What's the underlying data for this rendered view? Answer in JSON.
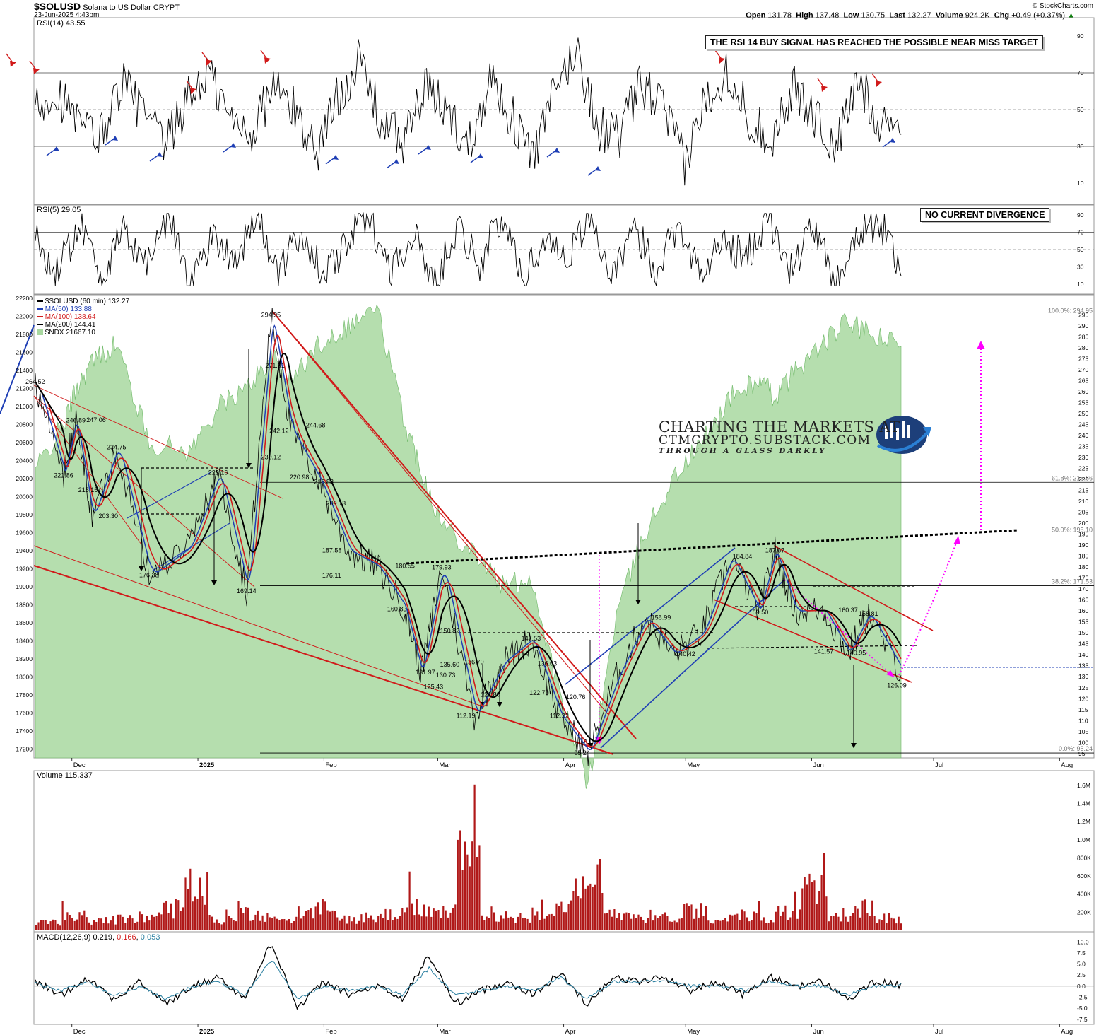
{
  "header": {
    "symbol": "$SOLUSD",
    "title": "Solana to US Dollar",
    "exchange": "CRYPT",
    "date": "23-Jun-2025 4:43pm",
    "watermark": "© StockCharts.com",
    "open_label": "Open",
    "open": "131.78",
    "high_label": "High",
    "high": "137.48",
    "low_label": "Low",
    "low": "130.75",
    "last_label": "Last",
    "last": "132.27",
    "volume_label": "Volume",
    "volume": "924.2K",
    "chg_label": "Chg",
    "chg": "+0.49 (+0.37%)",
    "chg_marker": "▲"
  },
  "branding": {
    "line1": "CHARTING THE MARKETS AT",
    "line2": "CTMCRYPTO.SUBSTACK.COM",
    "line3": "THROUGH A GLASS DARKLY"
  },
  "colors": {
    "ma50": "#1f3fb5",
    "ma100": "#d11a1a",
    "ma200": "#000000",
    "ndx_fill": "#a8d8a0",
    "annotation": "#ff00ff",
    "volume": "#b01818",
    "macd_signal": "#2a7fa0"
  },
  "chart_data": [
    {
      "type": "line",
      "panel": "RSI(14)",
      "legend": "RSI(14) 43.55",
      "ylim": [
        0,
        100
      ],
      "yticks": [
        10,
        30,
        50,
        70,
        90
      ],
      "reference_lines": [
        30,
        50,
        70
      ],
      "annotation": "THE RSI 14 BUY SIGNAL HAS REACHED THE POSSIBLE NEAR MISS TARGET",
      "series": [
        {
          "values": [
            52,
            60,
            41,
            35,
            66,
            48,
            29,
            55,
            71,
            44,
            38,
            63,
            49,
            27,
            58,
            77,
            42,
            33,
            61,
            50,
            30,
            68,
            46,
            24,
            59,
            83,
            40,
            36,
            64,
            51,
            20,
            57,
            72,
            45,
            34,
            62,
            47,
            28,
            66,
            44,
            43.55
          ]
        }
      ]
    },
    {
      "type": "line",
      "panel": "RSI(5)",
      "legend": "RSI(5) 29.05",
      "ylim": [
        0,
        100
      ],
      "yticks": [
        10,
        30,
        50,
        70,
        90
      ],
      "reference_lines": [
        30,
        50,
        70
      ],
      "annotation": "NO CURRENT DIVERGENCE",
      "series": [
        {
          "values": [
            60,
            22,
            85,
            18,
            70,
            35,
            90,
            12,
            66,
            40,
            88,
            20,
            75,
            15,
            58,
            92,
            25,
            69,
            10,
            80,
            33,
            86,
            19,
            63,
            44,
            91,
            14,
            72,
            28,
            84,
            17,
            61,
            38,
            89,
            23,
            77,
            12,
            65,
            84,
            29.05
          ]
        }
      ]
    },
    {
      "type": "line",
      "panel": "price",
      "legend": [
        "$SOLUSD (60 min) 132.27",
        "MA(50) 133.88",
        "MA(100) 138.64",
        "MA(200) 144.41",
        "$NDX 21667.10"
      ],
      "x": [
        "2024-11-22",
        "2024-11-29",
        "2024-12-02",
        "2024-12-06",
        "2024-12-12",
        "2024-12-20",
        "2024-12-30",
        "2025-01-06",
        "2025-01-13",
        "2025-01-19",
        "2025-01-24",
        "2025-01-31",
        "2025-02-07",
        "2025-02-14",
        "2025-02-21",
        "2025-02-25",
        "2025-03-02",
        "2025-03-10",
        "2025-03-17",
        "2025-03-24",
        "2025-03-31",
        "2025-04-07",
        "2025-04-14",
        "2025-04-21",
        "2025-04-28",
        "2025-05-05",
        "2025-05-12",
        "2025-05-19",
        "2025-05-23",
        "2025-05-28",
        "2025-06-04",
        "2025-06-10",
        "2025-06-15",
        "2025-06-23"
      ],
      "series": [
        {
          "name": "$SOLUSD (60 min)",
          "values": [
            264.52,
            221.86,
            246.89,
            203.3,
            234.75,
            176.38,
            190,
            223.16,
            169.14,
            294.95,
            242.12,
            218.88,
            187.58,
            180.55,
            160.83,
            131.97,
            179.93,
            112.19,
            136.7,
            147.53,
            112.22,
            95.24,
            130,
            156.99,
            140.42,
            150,
            184.84,
            159.5,
            187.67,
            160,
            160.37,
            140.95,
            158.81,
            132.27
          ]
        },
        {
          "name": "$NDX",
          "values": [
            20300,
            20800,
            21200,
            21500,
            21700,
            20600,
            20500,
            21000,
            21200,
            21550,
            21300,
            21700,
            21900,
            22100,
            20800,
            20300,
            19700,
            19400,
            19000,
            19100,
            17800,
            16800,
            18700,
            19600,
            20200,
            20600,
            21100,
            21300,
            21100,
            21400,
            21700,
            21950,
            21800,
            21667.1
          ]
        }
      ],
      "ylim_price": [
        93,
        300
      ],
      "yticks_price": [
        95,
        100,
        105,
        110,
        115,
        120,
        125,
        130,
        135,
        140,
        145,
        150,
        155,
        160,
        165,
        170,
        175,
        180,
        185,
        190,
        195,
        200,
        205,
        210,
        215,
        220,
        225,
        230,
        235,
        240,
        245,
        250,
        255,
        260,
        265,
        270,
        275,
        280,
        285,
        290,
        295
      ],
      "ylim_ndx": [
        17100,
        22200
      ],
      "yticks_ndx": [
        17200,
        17400,
        17600,
        17800,
        18000,
        18200,
        18400,
        18600,
        18800,
        19000,
        19200,
        19400,
        19600,
        19800,
        20000,
        20200,
        20400,
        20600,
        20800,
        21000,
        21200,
        21400,
        21600,
        21800,
        22000,
        22200
      ],
      "xticks": [
        "Dec",
        "2025",
        "Feb",
        "Mar",
        "Apr",
        "May",
        "Jun",
        "Jul",
        "Aug"
      ],
      "fib_levels": [
        {
          "label": "100.0%: 294.95",
          "price": 294.95
        },
        {
          "label": "61.8%: 218.66",
          "price": 218.66
        },
        {
          "label": "50.0%: 195.10",
          "price": 195.1
        },
        {
          "label": "38.2%: 171.53",
          "price": 171.53
        },
        {
          "label": "0.0%: 95.24",
          "price": 95.24
        }
      ],
      "price_labels": [
        {
          "text": "264.52",
          "date": "2024-11-22",
          "price": 264.52
        },
        {
          "text": "221.86",
          "date": "2024-11-29",
          "price": 221.86
        },
        {
          "text": "246.89",
          "date": "2024-12-02",
          "price": 246.89
        },
        {
          "text": "247.06",
          "date": "2024-12-07",
          "price": 247.06
        },
        {
          "text": "215.15",
          "date": "2024-12-05",
          "price": 215.15
        },
        {
          "text": "234.75",
          "date": "2024-12-12",
          "price": 234.75
        },
        {
          "text": "203.30",
          "date": "2024-12-10",
          "price": 203.3
        },
        {
          "text": "176.38",
          "date": "2024-12-20",
          "price": 176.38
        },
        {
          "text": "223.16",
          "date": "2025-01-06",
          "price": 223.16
        },
        {
          "text": "169.14",
          "date": "2025-01-13",
          "price": 169.14
        },
        {
          "text": "294.95",
          "date": "2025-01-19",
          "price": 294.95
        },
        {
          "text": "271.91",
          "date": "2025-01-20",
          "price": 271.91
        },
        {
          "text": "230.12",
          "date": "2025-01-19",
          "price": 230.12
        },
        {
          "text": "242.12",
          "date": "2025-01-21",
          "price": 242.12
        },
        {
          "text": "244.68",
          "date": "2025-01-30",
          "price": 244.68
        },
        {
          "text": "220.98",
          "date": "2025-01-26",
          "price": 220.98
        },
        {
          "text": "218.88",
          "date": "2025-02-01",
          "price": 218.88
        },
        {
          "text": "209.13",
          "date": "2025-02-04",
          "price": 209.13
        },
        {
          "text": "187.58",
          "date": "2025-02-03",
          "price": 187.58
        },
        {
          "text": "176.11",
          "date": "2025-02-03",
          "price": 176.11
        },
        {
          "text": "180.55",
          "date": "2025-02-21",
          "price": 180.55
        },
        {
          "text": "179.93",
          "date": "2025-03-02",
          "price": 179.93
        },
        {
          "text": "160.83",
          "date": "2025-02-19",
          "price": 160.83
        },
        {
          "text": "150.82",
          "date": "2025-03-04",
          "price": 150.82
        },
        {
          "text": "131.97",
          "date": "2025-02-26",
          "price": 131.97
        },
        {
          "text": "125.43",
          "date": "2025-02-28",
          "price": 125.43
        },
        {
          "text": "135.60",
          "date": "2025-03-04",
          "price": 135.6
        },
        {
          "text": "130.73",
          "date": "2025-03-03",
          "price": 130.73
        },
        {
          "text": "136.70",
          "date": "2025-03-10",
          "price": 136.7
        },
        {
          "text": "112.19",
          "date": "2025-03-08",
          "price": 112.19
        },
        {
          "text": "121.80",
          "date": "2025-03-14",
          "price": 121.8
        },
        {
          "text": "147.53",
          "date": "2025-03-24",
          "price": 147.53
        },
        {
          "text": "136.03",
          "date": "2025-03-28",
          "price": 136.03
        },
        {
          "text": "122.70",
          "date": "2025-03-26",
          "price": 122.7
        },
        {
          "text": "112.22",
          "date": "2025-03-31",
          "price": 112.22
        },
        {
          "text": "120.76",
          "date": "2025-04-04",
          "price": 120.76
        },
        {
          "text": "95.24",
          "date": "2025-04-06",
          "price": 95.24
        },
        {
          "text": "156.99",
          "date": "2025-04-25",
          "price": 156.99
        },
        {
          "text": "140.42",
          "date": "2025-05-01",
          "price": 140.42
        },
        {
          "text": "184.84",
          "date": "2025-05-15",
          "price": 184.84
        },
        {
          "text": "187.67",
          "date": "2025-05-23",
          "price": 187.67
        },
        {
          "text": "159.50",
          "date": "2025-05-19",
          "price": 159.5
        },
        {
          "text": "160.37",
          "date": "2025-06-10",
          "price": 160.37
        },
        {
          "text": "158.81",
          "date": "2025-06-15",
          "price": 158.81
        },
        {
          "text": "141.57",
          "date": "2025-06-04",
          "price": 141.57
        },
        {
          "text": "140.95",
          "date": "2025-06-12",
          "price": 140.95
        },
        {
          "text": "126.09",
          "date": "2025-06-22",
          "price": 126.09
        }
      ]
    },
    {
      "type": "bar",
      "panel": "Volume",
      "legend": "Volume 115,337",
      "yticks": [
        "200K",
        "400K",
        "600K",
        "800K",
        "1.0M",
        "1.2M",
        "1.4M",
        "1.6M"
      ],
      "ylim": [
        0,
        1700000
      ],
      "values": [
        180000,
        320000,
        240000,
        260000,
        300000,
        520000,
        980000,
        260000,
        400000,
        280000,
        330000,
        470000,
        260000,
        290000,
        350000,
        520000,
        410000,
        1600000,
        380000,
        310000,
        430000,
        640000,
        880000,
        420000,
        330000,
        300000,
        470000,
        290000,
        340000,
        310000,
        420000,
        900000,
        360000,
        500000,
        280000,
        115337
      ]
    },
    {
      "type": "line",
      "panel": "MACD",
      "legend": [
        "MACD(12,26,9)",
        "0.219",
        "0.166",
        "0.053"
      ],
      "ylim": [
        -8,
        11
      ],
      "yticks": [
        "10.0",
        "7.5",
        "5.0",
        "2.5",
        "0.0",
        "-2.5",
        "-5.0",
        "-7.5"
      ],
      "series": [
        {
          "name": "MACD",
          "values": [
            1,
            -2,
            2,
            -3,
            1,
            -4,
            0,
            2,
            -3,
            10,
            -5,
            1,
            -2,
            0,
            -3,
            7,
            -4,
            -1,
            1,
            -2,
            3,
            -4,
            2,
            1,
            2,
            -1,
            1,
            -2,
            2,
            0,
            1,
            -3,
            1,
            0.219
          ]
        },
        {
          "name": "signal",
          "values": [
            0.5,
            -1,
            1,
            -2,
            0,
            -3,
            0,
            1,
            -2,
            6,
            -3,
            0,
            -1,
            0,
            -2,
            4,
            -2,
            -1,
            0,
            -1,
            2,
            -3,
            1,
            1,
            1,
            0,
            0,
            -1,
            1,
            0,
            0,
            -2,
            0,
            0.166
          ]
        }
      ]
    }
  ]
}
